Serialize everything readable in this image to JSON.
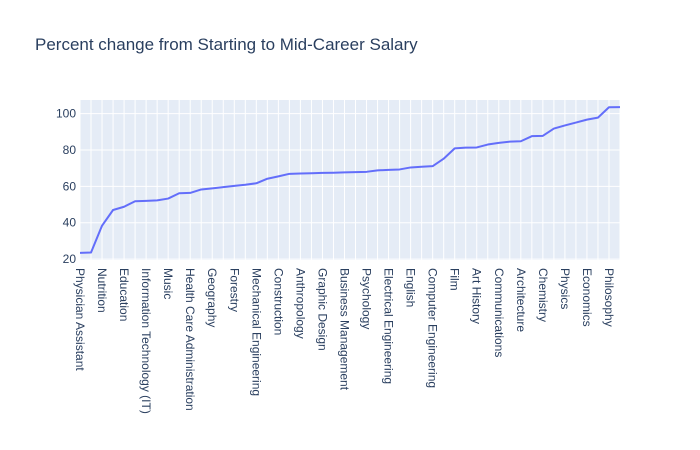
{
  "chart_data": {
    "type": "line",
    "title": "Percent change from Starting to Mid-Career Salary",
    "xlabel": "",
    "ylabel": "",
    "ylim": [
      19.5,
      107.5
    ],
    "yticks": [
      20,
      40,
      60,
      80,
      100
    ],
    "grid": true,
    "legend": "none",
    "colors": {
      "line": "#636efa",
      "plot_bg": "#e5ecf6",
      "grid": "#ffffff",
      "text": "#2a3f5f"
    },
    "categories": [
      "Physician Assistant",
      "",
      "Nutrition",
      "",
      "Education",
      "",
      "Information Technology (IT)",
      "",
      "Music",
      "",
      "Health Care Administration",
      "",
      "Geography",
      "",
      "Forestry",
      "",
      "Mechanical Engineering",
      "",
      "Construction",
      "",
      "Anthropology",
      "",
      "Graphic Design",
      "",
      "Business Management",
      "",
      "Psychology",
      "",
      "Electrical Engineering",
      "",
      "English",
      "",
      "Computer Engineering",
      "",
      "Film",
      "",
      "Art History",
      "",
      "Communications",
      "",
      "Architecture",
      "",
      "Chemistry",
      "",
      "Physics",
      "",
      "Economics",
      "",
      "Philosophy",
      ""
    ],
    "series": [
      {
        "values": [
          23.4,
          23.6,
          38.4,
          47.0,
          48.8,
          51.8,
          52.0,
          52.3,
          53.3,
          56.2,
          56.4,
          58.3,
          58.9,
          59.6,
          60.3,
          60.9,
          61.7,
          64.2,
          65.5,
          66.9,
          67.1,
          67.2,
          67.4,
          67.5,
          67.7,
          67.8,
          68.0,
          68.8,
          69.1,
          69.3,
          70.4,
          70.8,
          71.1,
          75.2,
          80.9,
          81.3,
          81.4,
          83.0,
          83.9,
          84.6,
          84.8,
          87.6,
          87.8,
          91.8,
          93.5,
          95.1,
          96.7,
          97.8,
          103.5,
          103.6
        ]
      }
    ]
  }
}
